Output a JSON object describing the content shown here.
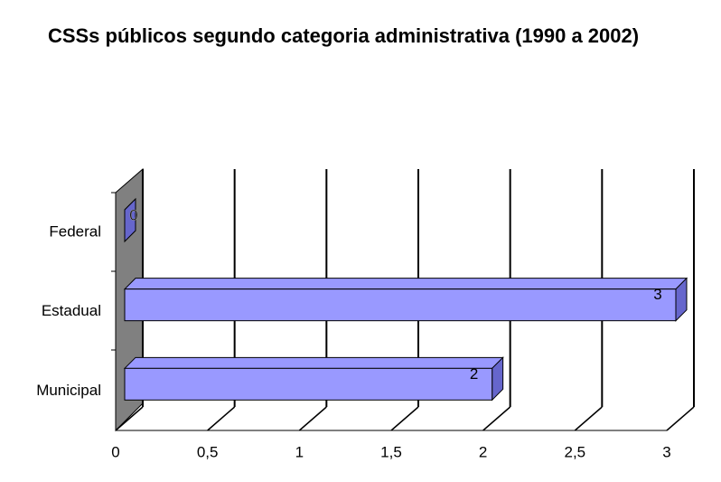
{
  "chart_data": {
    "type": "bar",
    "orientation": "horizontal",
    "title": "CSSs públicos segundo categoria administrativa (1990 a 2002)",
    "categories": [
      "Federal",
      "Estadual",
      "Municipal"
    ],
    "values": [
      0,
      3,
      2
    ],
    "color": "#9999ff",
    "xlim": [
      0,
      3
    ],
    "xticks": [
      0,
      {
        "value": 0.5,
        "label": "0,5"
      },
      1,
      {
        "value": 1.5,
        "label": "1,5"
      },
      2,
      {
        "value": 2.5,
        "label": "2,5"
      },
      3
    ],
    "grid": true
  }
}
